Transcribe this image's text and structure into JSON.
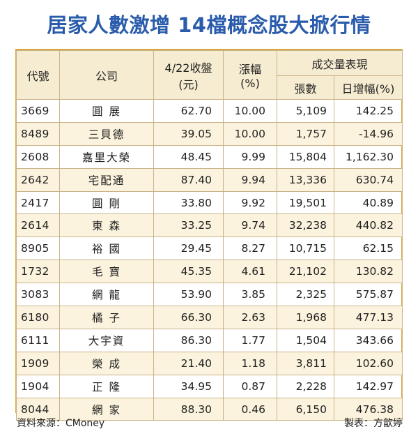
{
  "title": "居家人數激增  14檔概念股大掀行情",
  "headers": {
    "code": "代號",
    "company": "公司",
    "close_line1": "4/22收盤",
    "close_line2": "(元)",
    "change_line1": "漲幅",
    "change_line2": "(%)",
    "volume_group": "成交量表現",
    "shares": "張數",
    "daily_increase": "日增幅(%)"
  },
  "rows": [
    {
      "code": "3669",
      "company": "圓 展",
      "close": "62.70",
      "change": "10.00",
      "shares": "5,109",
      "daily": "142.25"
    },
    {
      "code": "8489",
      "company": "三貝德",
      "close": "39.05",
      "change": "10.00",
      "shares": "1,757",
      "daily": "-14.96"
    },
    {
      "code": "2608",
      "company": "嘉里大榮",
      "close": "48.45",
      "change": "9.99",
      "shares": "15,804",
      "daily": "1,162.30"
    },
    {
      "code": "2642",
      "company": "宅配通",
      "close": "87.40",
      "change": "9.94",
      "shares": "13,336",
      "daily": "630.74"
    },
    {
      "code": "2417",
      "company": "圓 剛",
      "close": "33.80",
      "change": "9.92",
      "shares": "19,501",
      "daily": "40.89"
    },
    {
      "code": "2614",
      "company": "東 森",
      "close": "33.25",
      "change": "9.74",
      "shares": "32,238",
      "daily": "440.82"
    },
    {
      "code": "8905",
      "company": "裕 國",
      "close": "29.45",
      "change": "8.27",
      "shares": "10,715",
      "daily": "62.15"
    },
    {
      "code": "1732",
      "company": "毛 寶",
      "close": "45.35",
      "change": "4.61",
      "shares": "21,102",
      "daily": "130.82"
    },
    {
      "code": "3083",
      "company": "網 龍",
      "close": "53.90",
      "change": "3.85",
      "shares": "2,325",
      "daily": "575.87"
    },
    {
      "code": "6180",
      "company": "橘 子",
      "close": "66.30",
      "change": "2.63",
      "shares": "1,968",
      "daily": "477.13"
    },
    {
      "code": "6111",
      "company": "大宇資",
      "close": "86.30",
      "change": "1.77",
      "shares": "1,504",
      "daily": "343.66"
    },
    {
      "code": "1909",
      "company": "榮 成",
      "close": "21.40",
      "change": "1.18",
      "shares": "3,811",
      "daily": "102.60"
    },
    {
      "code": "1904",
      "company": "正 隆",
      "close": "34.95",
      "change": "0.87",
      "shares": "2,228",
      "daily": "142.97"
    },
    {
      "code": "8044",
      "company": "網 家",
      "close": "88.30",
      "change": "0.46",
      "shares": "6,150",
      "daily": "476.38"
    }
  ],
  "footer": {
    "source": "資料來源：CMoney",
    "credit": "製表：方歆婷"
  },
  "colors": {
    "title": "#2a5cab",
    "header_bg": "#f6ecd1",
    "stripe_bg": "#fbf3dd",
    "border": "#d9a93f"
  }
}
